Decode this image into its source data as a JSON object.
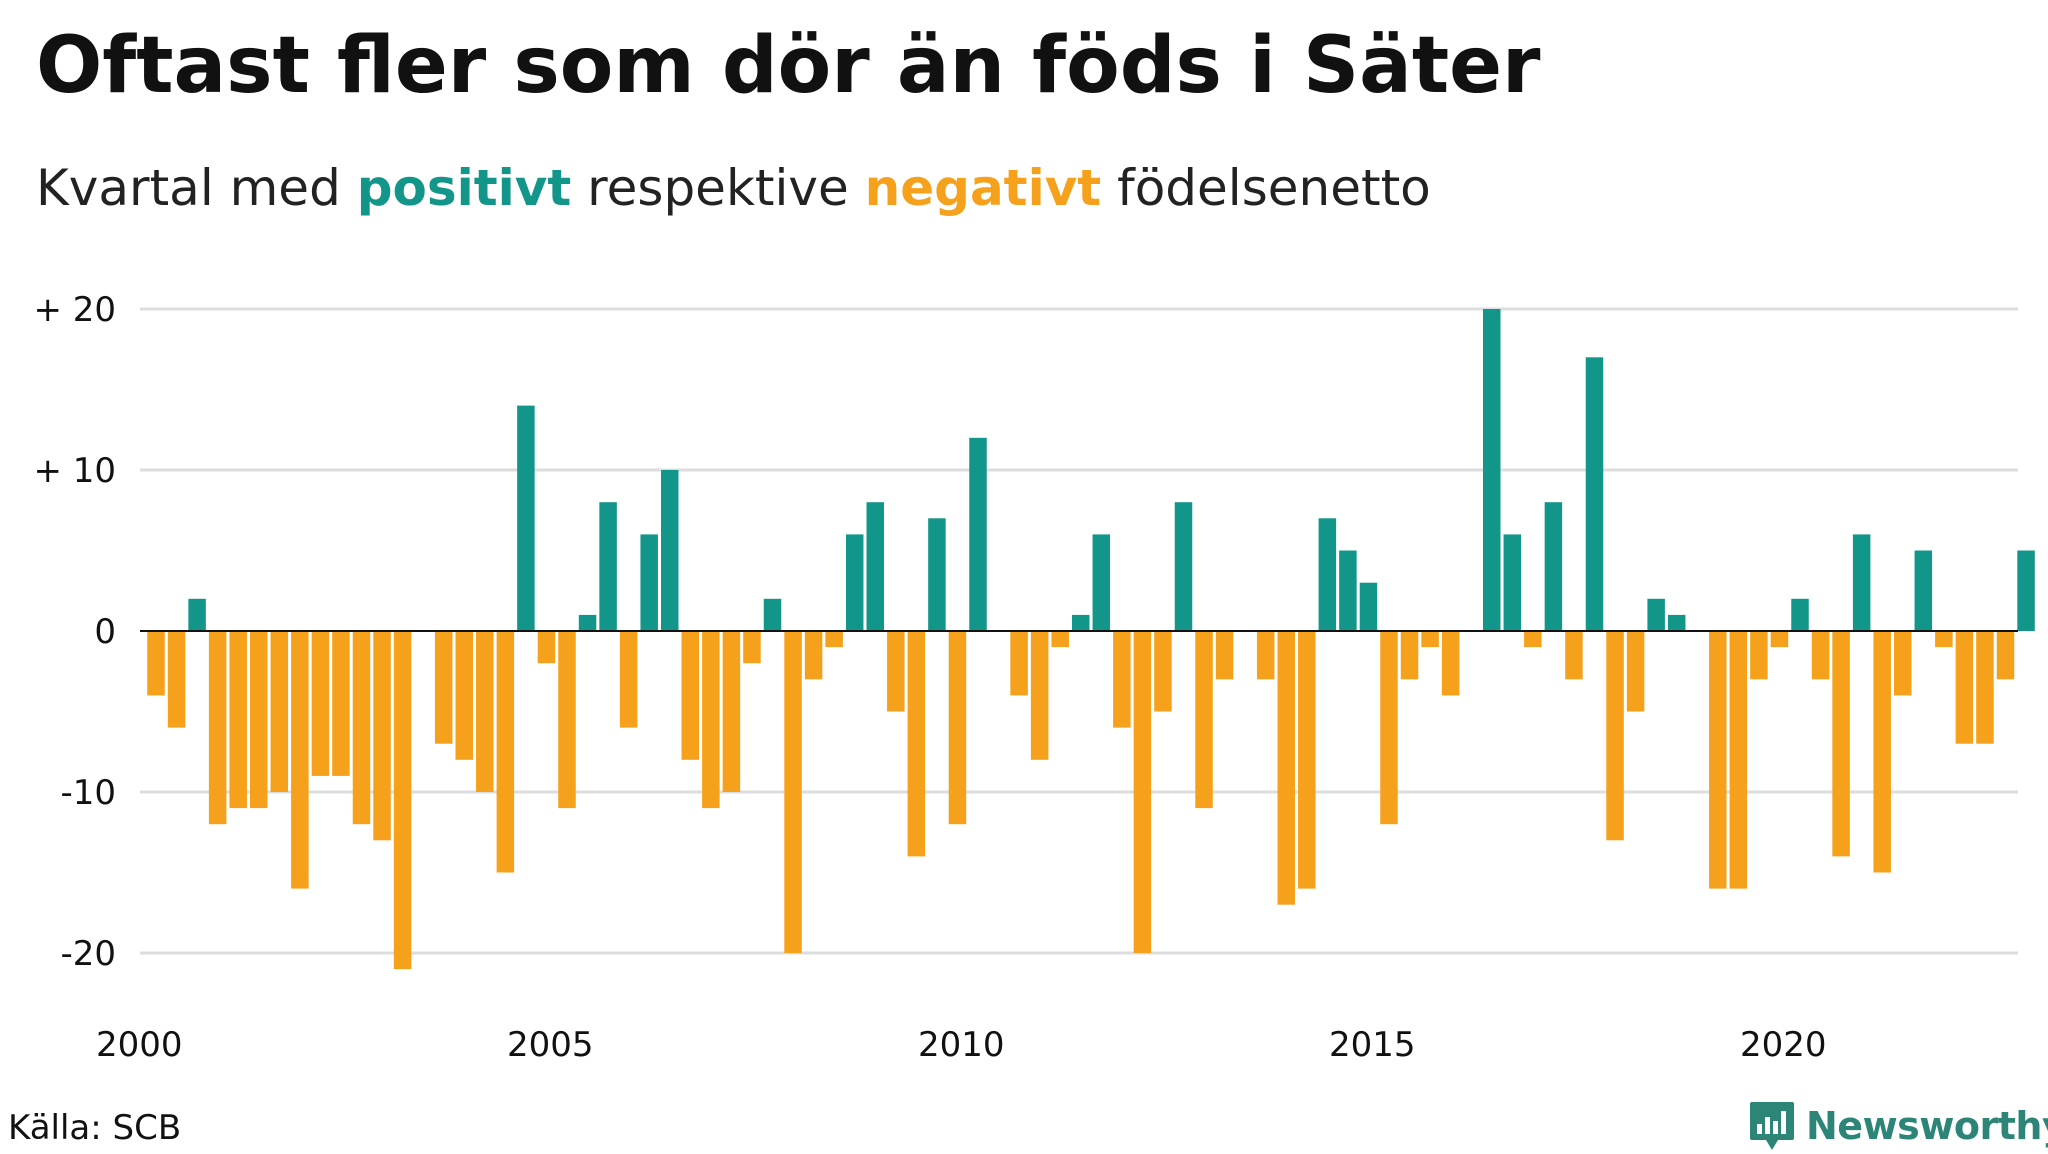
{
  "title": "Oftast fler som dör än föds i Säter",
  "subtitle": {
    "prefix": "Kvartal med ",
    "positive": "positivt",
    "middle": " respektive ",
    "negative": "negativt",
    "suffix": " födelsenetto"
  },
  "source": "Källa: SCB",
  "brand": {
    "name": "Newsworthy",
    "icon": "newsworthy-logo-icon"
  },
  "colors": {
    "positive": "#13968a",
    "negative": "#f5a11c",
    "grid": "#dddddd",
    "brand": "#2d8577"
  },
  "chart_data": {
    "type": "bar",
    "title": "Oftast fler som dör än föds i Säter",
    "subtitle": "Kvartal med positivt respektive negativt födelsenetto",
    "xlabel": "",
    "ylabel": "",
    "x_tick_labels": [
      "2000",
      "2005",
      "2010",
      "2015",
      "2020"
    ],
    "y_ticks": [
      20,
      10,
      0,
      -10,
      -20
    ],
    "y_tick_labels": [
      "+ 20",
      "+ 10",
      "0",
      "-10",
      "-20"
    ],
    "ylim": [
      -21,
      20
    ],
    "grid": true,
    "legend": "none",
    "start_period": "2000 K1",
    "periods_per_year": 4,
    "values": [
      -4,
      -6,
      2,
      -12,
      -11,
      -11,
      -10,
      -16,
      -9,
      -9,
      -12,
      -13,
      -21,
      0,
      -7,
      -8,
      -10,
      -15,
      14,
      -2,
      -11,
      1,
      8,
      -6,
      6,
      10,
      -8,
      -11,
      -10,
      -2,
      2,
      -20,
      -3,
      -1,
      6,
      8,
      -5,
      -14,
      7,
      -12,
      12,
      0,
      -4,
      -8,
      -1,
      1,
      6,
      -6,
      -20,
      -5,
      8,
      -11,
      -3,
      0,
      -3,
      -17,
      -16,
      7,
      5,
      3,
      -12,
      -3,
      -1,
      -4,
      0,
      20,
      6,
      -1,
      8,
      -3,
      17,
      -13,
      -5,
      2,
      1,
      0,
      -16,
      -16,
      -3,
      -1,
      2,
      -3,
      -14,
      6,
      -15,
      -4,
      5,
      -1,
      -7,
      -7,
      -3,
      5
    ]
  }
}
